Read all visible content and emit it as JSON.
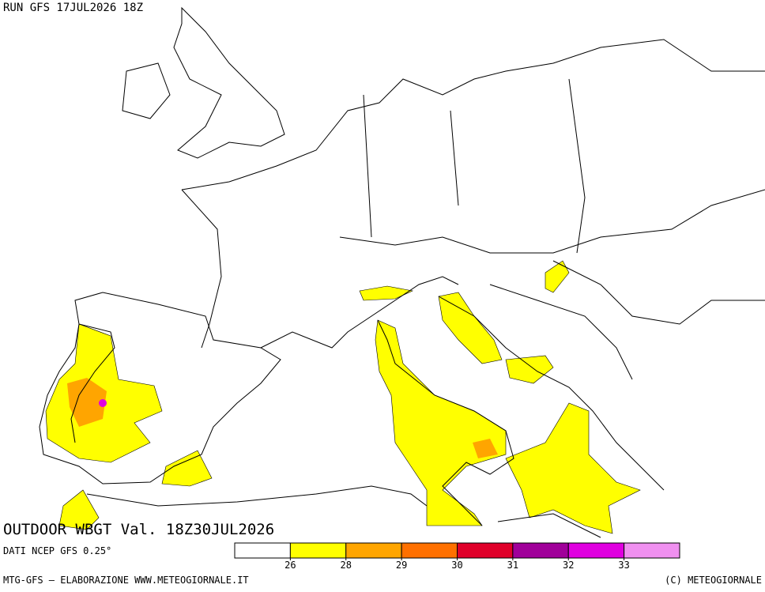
{
  "header": {
    "run": "RUN GFS 17JUL2026 18Z"
  },
  "map": {
    "title": "OUTDOOR WBGT Val. 18Z30JUL2026"
  },
  "legend": {
    "source": "DATI NCEP GFS 0.25°",
    "colors": [
      "#ffffff",
      "#ffff00",
      "#ffa500",
      "#ff7000",
      "#e0002a",
      "#a0009a",
      "#e000e0",
      "#f090f0"
    ],
    "ticks": [
      26,
      28,
      29,
      30,
      31,
      32,
      33
    ]
  },
  "footer": {
    "left": "MTG-GFS — ELABORAZIONE WWW.METEOGIORNALE.IT",
    "right": "(C) METEOGIORNALE"
  }
}
